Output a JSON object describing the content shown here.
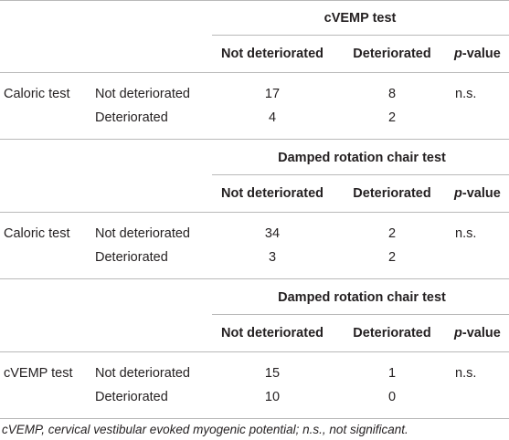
{
  "sections": [
    {
      "test_header": "cVEMP test",
      "col1": "Not deteriorated",
      "col2": "Deteriorated",
      "pval_italic": "p",
      "pval_rest": "-value",
      "row_group": "Caloric test",
      "rows": [
        {
          "label": "Not deteriorated",
          "v1": "17",
          "v2": "8",
          "p": "n.s."
        },
        {
          "label": "Deteriorated",
          "v1": "4",
          "v2": "2",
          "p": ""
        }
      ]
    },
    {
      "test_header": "Damped rotation chair test",
      "col1": "Not deteriorated",
      "col2": "Deteriorated",
      "pval_italic": "p",
      "pval_rest": "-value",
      "row_group": "Caloric test",
      "rows": [
        {
          "label": "Not deteriorated",
          "v1": "34",
          "v2": "2",
          "p": "n.s."
        },
        {
          "label": "Deteriorated",
          "v1": "3",
          "v2": "2",
          "p": ""
        }
      ]
    },
    {
      "test_header": "Damped rotation chair test",
      "col1": "Not deteriorated",
      "col2": "Deteriorated",
      "pval_italic": "p",
      "pval_rest": "-value",
      "row_group": "cVEMP test",
      "rows": [
        {
          "label": "Not deteriorated",
          "v1": "15",
          "v2": "1",
          "p": "n.s."
        },
        {
          "label": "Deteriorated",
          "v1": "10",
          "v2": "0",
          "p": ""
        }
      ]
    }
  ],
  "footnote": "cVEMP, cervical vestibular evoked myogenic potential; n.s., not significant."
}
